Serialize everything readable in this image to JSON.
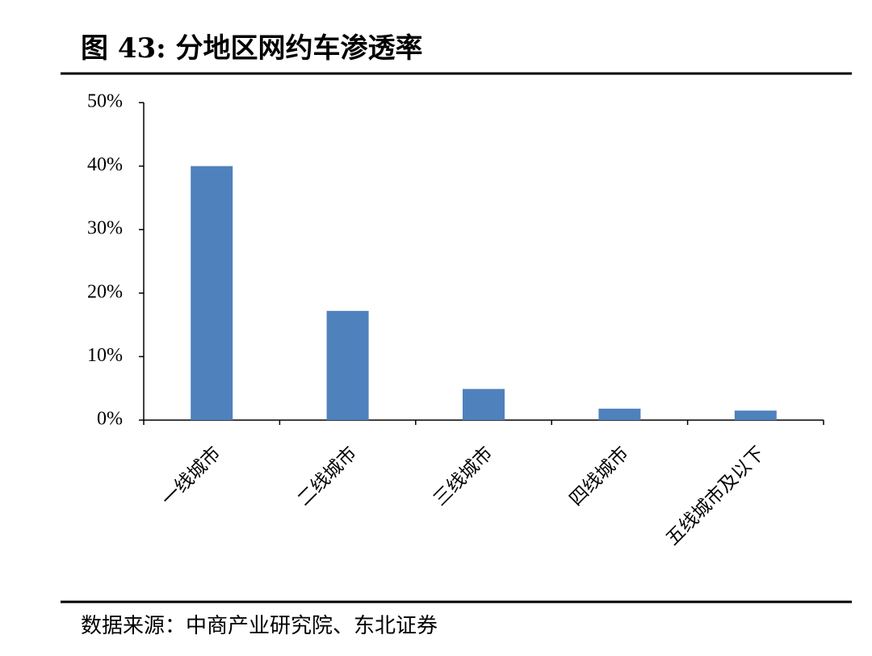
{
  "chart_data": {
    "type": "bar",
    "title": "图 43: 分地区网约车渗透率",
    "source": "数据来源：中商产业研究院、东北证券",
    "categories": [
      "一线城市",
      "二线城市",
      "三线城市",
      "四线城市",
      "五线城市及以下"
    ],
    "values": [
      40,
      17.2,
      4.9,
      1.8,
      1.5
    ],
    "color": "#4f81bd",
    "ylim": [
      0,
      50
    ],
    "yticks": [
      {
        "value": 0,
        "label": "0%"
      },
      {
        "value": 10,
        "label": "10%"
      },
      {
        "value": 20,
        "label": "20%"
      },
      {
        "value": 30,
        "label": "30%"
      },
      {
        "value": 40,
        "label": "40%"
      },
      {
        "value": 50,
        "label": "50%"
      }
    ],
    "grid": false
  }
}
